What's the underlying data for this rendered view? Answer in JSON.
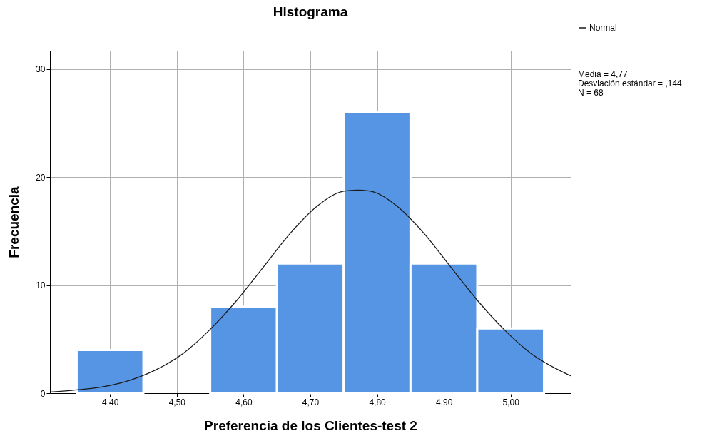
{
  "chart_data": {
    "type": "histogram",
    "title": "Histograma",
    "xlabel": "Preferencia de los Clientes-test 2",
    "ylabel": "Frecuencia",
    "bins": [
      4.35,
      4.45,
      4.55,
      4.65,
      4.75,
      4.85,
      4.95,
      5.05
    ],
    "values": [
      4,
      0,
      8,
      12,
      26,
      12,
      6
    ],
    "color": "#5595e3",
    "series": [
      {
        "type": "line",
        "name": "Normal",
        "color": "#1a1a1a",
        "x": [
          4.31,
          4.35,
          4.39,
          4.43,
          4.47,
          4.51,
          4.55,
          4.59,
          4.63,
          4.67,
          4.71,
          4.75,
          4.77,
          4.79,
          4.83,
          4.87,
          4.91,
          4.95,
          4.99,
          5.03,
          5.07,
          5.09
        ],
        "values": [
          0.1,
          0.3,
          0.6,
          1.2,
          2.2,
          3.7,
          5.9,
          8.6,
          11.7,
          14.8,
          17.3,
          18.7,
          18.8,
          18.7,
          17.3,
          14.8,
          11.7,
          8.6,
          5.9,
          3.7,
          2.2,
          1.6
        ]
      }
    ],
    "xlim": [
      4.31,
      5.09
    ],
    "xticks": [
      {
        "value": 4.4,
        "label": "4,40"
      },
      {
        "value": 4.5,
        "label": "4,50"
      },
      {
        "value": 4.6,
        "label": "4,60"
      },
      {
        "value": 4.7,
        "label": "4,70"
      },
      {
        "value": 4.8,
        "label": "4,80"
      },
      {
        "value": 4.9,
        "label": "4,90"
      },
      {
        "value": 5.0,
        "label": "5,00"
      }
    ],
    "ylim": [
      0,
      31.7
    ],
    "yticks": [
      0,
      10,
      20,
      30
    ],
    "annotations": [
      "Media = 4,77",
      "Desviación estándar = ,144",
      "N = 68"
    ],
    "grid": true,
    "legend": "top right"
  }
}
